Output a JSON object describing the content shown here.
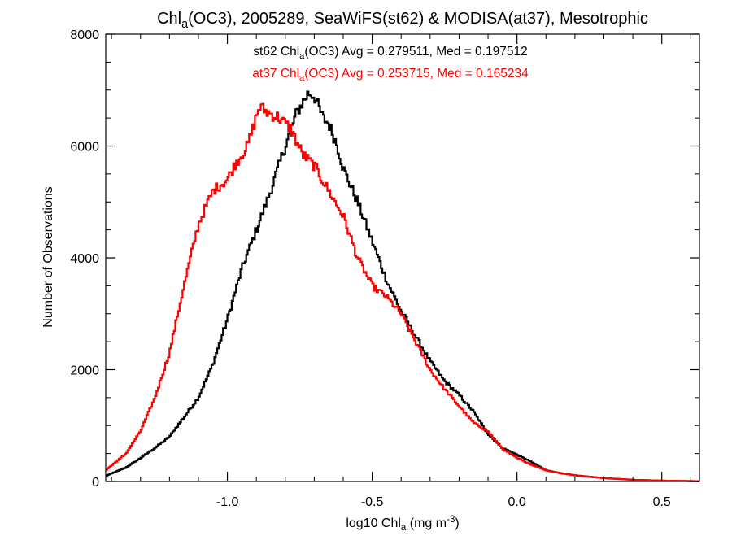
{
  "chart_data": {
    "type": "line",
    "title": {
      "prefix": "Chl",
      "subscript": "a",
      "suffix": "(OC3), 2005289, SeaWiFS(st62) & MODISA(at37), Mesotrophic"
    },
    "xlabel": {
      "prefix": "log10 Chl",
      "subscript": "a",
      "middle": " (mg m",
      "superscript": "-3",
      "suffix": ")"
    },
    "ylabel": "Number of Observations",
    "xlim": [
      -1.42,
      0.63
    ],
    "ylim": [
      0,
      8000
    ],
    "x_ticks": [
      -1.0,
      -0.5,
      0.0,
      0.5
    ],
    "x_tick_labels": [
      "-1.0",
      "-0.5",
      "0.0",
      "0.5"
    ],
    "y_ticks": [
      0,
      2000,
      4000,
      6000,
      8000
    ],
    "y_tick_labels": [
      "0",
      "2000",
      "4000",
      "6000",
      "8000"
    ],
    "annotations": [
      {
        "name": "st62",
        "prefix": "st62 Chl",
        "subscript": "a",
        "suffix": "(OC3) Avg = 0.279511, Med = 0.197512",
        "color": "#000000"
      },
      {
        "name": "at37",
        "prefix": "at37 Chl",
        "subscript": "a",
        "suffix": "(OC3) Avg = 0.253715, Med = 0.165234",
        "color": "#ff0000"
      }
    ],
    "series": [
      {
        "name": "st62",
        "color": "#000000",
        "x": [
          -1.42,
          -1.35,
          -1.3,
          -1.25,
          -1.2,
          -1.15,
          -1.1,
          -1.05,
          -1.0,
          -0.95,
          -0.9,
          -0.85,
          -0.8,
          -0.76,
          -0.72,
          -0.7,
          -0.67,
          -0.65,
          -0.62,
          -0.6,
          -0.55,
          -0.5,
          -0.45,
          -0.4,
          -0.35,
          -0.3,
          -0.25,
          -0.2,
          -0.15,
          -0.1,
          -0.05,
          0.0,
          0.05,
          0.1,
          0.15,
          0.2,
          0.3,
          0.4,
          0.5,
          0.63
        ],
        "y": [
          100,
          250,
          420,
          600,
          800,
          1150,
          1500,
          2100,
          2900,
          3800,
          4500,
          5200,
          6000,
          6600,
          6950,
          6900,
          6500,
          6400,
          6000,
          5600,
          5000,
          4300,
          3600,
          3050,
          2600,
          2150,
          1800,
          1550,
          1250,
          850,
          600,
          480,
          350,
          200,
          150,
          110,
          60,
          30,
          15,
          5
        ]
      },
      {
        "name": "at37",
        "color": "#ff0000",
        "x": [
          -1.42,
          -1.35,
          -1.3,
          -1.25,
          -1.2,
          -1.15,
          -1.1,
          -1.05,
          -1.0,
          -0.97,
          -0.93,
          -0.89,
          -0.86,
          -0.82,
          -0.78,
          -0.74,
          -0.7,
          -0.65,
          -0.6,
          -0.55,
          -0.5,
          -0.45,
          -0.4,
          -0.35,
          -0.3,
          -0.25,
          -0.2,
          -0.15,
          -0.1,
          -0.05,
          0.0,
          0.05,
          0.1,
          0.15,
          0.2,
          0.3,
          0.4,
          0.5,
          0.63
        ],
        "y": [
          200,
          500,
          900,
          1500,
          2300,
          3500,
          4600,
          5200,
          5400,
          5700,
          6000,
          6700,
          6600,
          6500,
          6300,
          5850,
          5650,
          5200,
          4750,
          4000,
          3500,
          3300,
          3000,
          2500,
          2000,
          1650,
          1350,
          1050,
          900,
          580,
          420,
          300,
          200,
          150,
          110,
          60,
          30,
          15,
          5
        ]
      }
    ],
    "grid": false,
    "legend": "none"
  }
}
